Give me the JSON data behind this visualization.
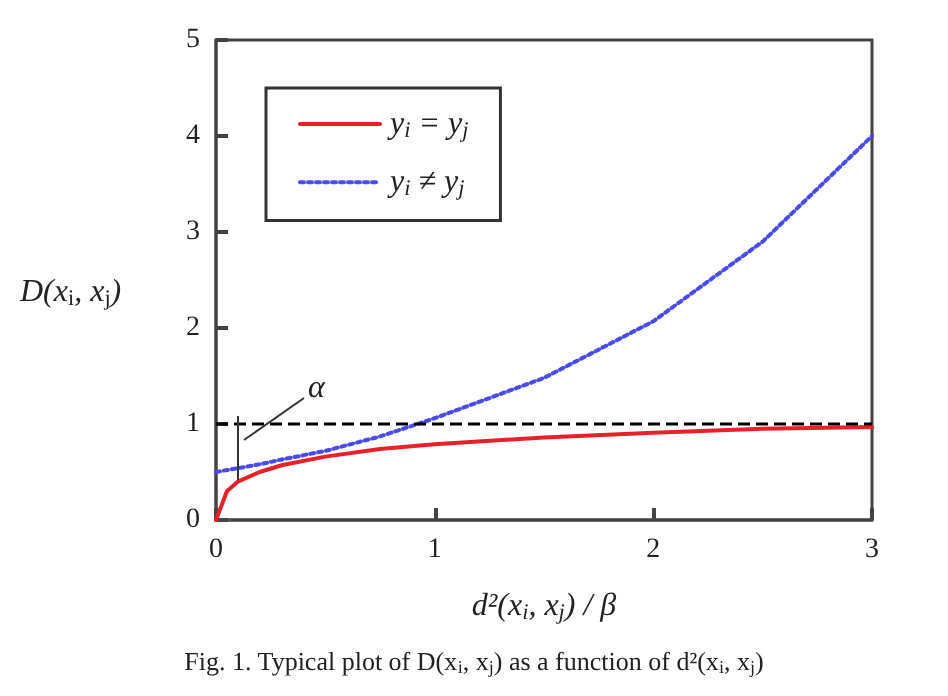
{
  "chart_data": {
    "type": "line",
    "xlabel": "d²(x$_{i}$, x$_{j}$) / β",
    "ylabel": "D(x$_{i}$, x$_{j}$)",
    "x": [
      0,
      0.05,
      0.1,
      0.2,
      0.3,
      0.5,
      0.75,
      1,
      1.5,
      2,
      2.5,
      3
    ],
    "series": [
      {
        "name": "y$_{i}$ = y$_{j}$",
        "color": "#e8202a",
        "line_style": "solid",
        "values": [
          0,
          0.3,
          0.4,
          0.5,
          0.57,
          0.66,
          0.74,
          0.79,
          0.86,
          0.91,
          0.95,
          0.97
        ]
      },
      {
        "name": "y$_{i}$ ≠ y$_{j}$",
        "color": "#4a4ae8",
        "line_style": "dotted",
        "values": [
          0.5,
          0.52,
          0.54,
          0.58,
          0.63,
          0.72,
          0.87,
          1.06,
          1.48,
          2.07,
          2.9,
          4.0
        ]
      }
    ],
    "xlim": [
      0,
      3
    ],
    "xticks": [
      0,
      1,
      2,
      3
    ],
    "ylim": [
      0,
      5
    ],
    "yticks": [
      0,
      1,
      2,
      3,
      4,
      5
    ],
    "ref_lines": [
      {
        "axis": "y",
        "value": 1,
        "color": "#000000",
        "line_style": "dashed"
      }
    ],
    "annotations": [
      "α",
      "Fig. 1. Typical plot of D(x$_{i}$, x$_{j}$) as a function of d²(x$_{i}$, x$_{j}$)"
    ],
    "grid": false,
    "legend": "top left",
    "marker": "none"
  }
}
